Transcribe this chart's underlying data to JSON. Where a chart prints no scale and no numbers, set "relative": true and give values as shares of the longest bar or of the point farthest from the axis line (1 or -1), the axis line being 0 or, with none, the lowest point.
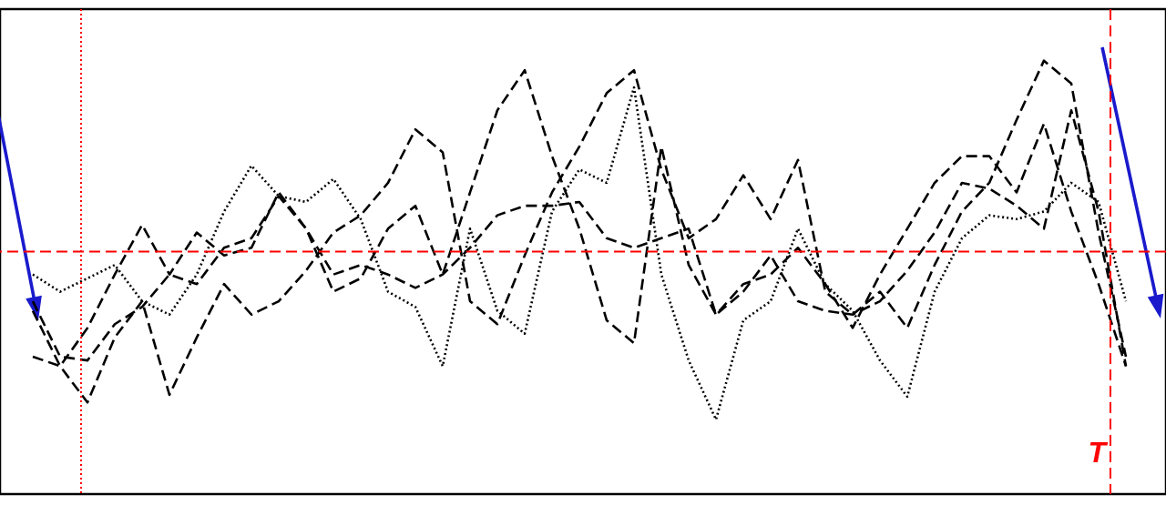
{
  "chart_data": {
    "type": "line",
    "relative": true,
    "marker": "none",
    "categories": [
      null,
      null,
      null,
      null,
      null,
      null,
      null,
      null,
      null,
      null,
      null,
      null,
      null,
      null,
      null,
      null,
      null,
      null,
      null,
      null,
      null,
      null,
      null,
      null,
      null,
      null,
      null,
      null,
      null,
      null,
      null,
      null,
      null,
      null,
      null,
      null,
      null,
      null,
      null,
      null,
      null
    ],
    "series": [
      {
        "color": "#000000",
        "line_style": "dotted",
        "values": [
          -0.12,
          -0.21,
          -0.14,
          -0.07,
          -0.26,
          -0.33,
          -0.12,
          0.21,
          0.45,
          0.29,
          0.26,
          0.38,
          0.17,
          -0.21,
          -0.29,
          -0.6,
          0.12,
          -0.31,
          -0.43,
          0.21,
          0.43,
          0.36,
          0.86,
          -0.12,
          -0.57,
          -0.88,
          -0.36,
          -0.26,
          0.12,
          -0.17,
          -0.31,
          -0.57,
          -0.76,
          -0.21,
          0.07,
          0.19,
          0.17,
          0.21,
          0.36,
          0.26,
          -0.26
        ]
      },
      {
        "color": "#000000",
        "line_style": "dashed",
        "values": [
          -0.55,
          -0.6,
          -0.79,
          -0.45,
          -0.26,
          -0.75,
          -0.45,
          -0.17,
          -0.33,
          -0.26,
          -0.1,
          0.1,
          0.19,
          0.36,
          0.64,
          0.52,
          -0.26,
          -0.38,
          -0.02,
          0.31,
          0.55,
          0.83,
          0.95,
          0.43,
          0.07,
          0.17,
          0.4,
          0.17,
          0.48,
          -0.21,
          -0.33,
          -0.21,
          -0.4,
          -0.07,
          0.21,
          0.36,
          0.69,
          1.0,
          0.88,
          0.1,
          -0.55
        ]
      },
      {
        "color": "#000000",
        "line_style": "dashed",
        "values": [
          -0.31,
          -0.6,
          -0.4,
          -0.12,
          0.14,
          -0.12,
          0.1,
          -0.02,
          0.02,
          0.31,
          0.12,
          -0.21,
          -0.14,
          0.12,
          0.24,
          -0.12,
          0.31,
          0.74,
          0.95,
          0.5,
          0.12,
          -0.36,
          -0.48,
          0.55,
          -0.07,
          -0.33,
          -0.17,
          -0.12,
          0.02,
          -0.17,
          -0.4,
          -0.12,
          0.12,
          0.36,
          0.5,
          0.5,
          0.31,
          0.67,
          0.21,
          -0.17,
          -0.6
        ]
      },
      {
        "color": "#000000",
        "line_style": "dashed",
        "values": [
          -0.26,
          -0.55,
          -0.57,
          -0.38,
          -0.29,
          -0.12,
          -0.17,
          0.02,
          0.07,
          0.29,
          0.12,
          -0.12,
          -0.07,
          -0.12,
          -0.19,
          -0.12,
          0.02,
          0.19,
          0.24,
          0.24,
          0.26,
          0.07,
          0.02,
          0.07,
          0.12,
          -0.33,
          -0.21,
          -0.02,
          -0.26,
          -0.31,
          -0.33,
          -0.26,
          -0.1,
          0.1,
          0.36,
          0.33,
          0.24,
          0.12,
          0.74,
          0.21,
          -0.6
        ]
      }
    ],
    "ref_lines": [
      {
        "axis": "y",
        "value": 0,
        "color": "#ff0000",
        "line_style": "dashed"
      }
    ],
    "annotations": [
      "T"
    ]
  }
}
